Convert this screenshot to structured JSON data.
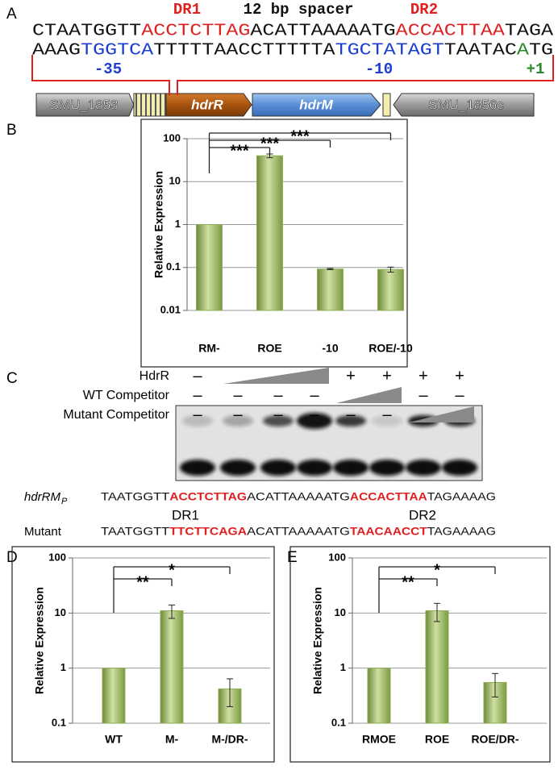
{
  "panels": [
    "A",
    "B",
    "C",
    "D",
    "E"
  ],
  "panel_a": {
    "labels": {
      "dr1": "DR1",
      "spacer": "12 bp spacer",
      "dr2": "DR2"
    },
    "line1": [
      {
        "text": "CTAATGGTT",
        "color": "#111111"
      },
      {
        "text": "ACCTCTTAG",
        "color": "#e02020"
      },
      {
        "text": "ACATTAAAAATG",
        "color": "#111111"
      },
      {
        "text": "ACCACTTAA",
        "color": "#e02020"
      },
      {
        "text": "TAGA",
        "color": "#111111"
      }
    ],
    "line2": [
      {
        "text": "AAAG",
        "color": "#111111"
      },
      {
        "text": "TGGTCA",
        "color": "#1a3fd0"
      },
      {
        "text": "TTTTTAACCTTTTTA",
        "color": "#111111"
      },
      {
        "text": "TGCTATAGT",
        "color": "#1a3fd0"
      },
      {
        "text": "TAATAC",
        "color": "#111111"
      },
      {
        "text": "A",
        "color": "#2a8a2a"
      },
      {
        "text": "TG",
        "color": "#111111"
      }
    ],
    "promoter": {
      "m35": "-35",
      "m10": "-10",
      "tss": "+1"
    },
    "genes": [
      "SMU_1853",
      "hdrR",
      "hdrM",
      "SMU_1856c"
    ]
  },
  "chart_data": [
    {
      "type": "bar",
      "ylabel": "Relative Expression",
      "categories": [
        "RM-",
        "ROE",
        "-10",
        "ROE/-10"
      ],
      "values": [
        1,
        40,
        0.092,
        0.09
      ],
      "errors": [
        null,
        4,
        0.003,
        0.012
      ],
      "color": "#8fae55",
      "log_scale": true,
      "ylim": [
        0.01,
        100
      ],
      "yticks": [
        0.01,
        0.1,
        1,
        10,
        100
      ],
      "grid": true,
      "annotations": [
        "***",
        "***",
        "***"
      ]
    },
    {
      "type": "bar",
      "ylabel": "Relative Expression",
      "categories": [
        "WT",
        "M-",
        "M-/DR-"
      ],
      "values": [
        1,
        11,
        0.42
      ],
      "errors": [
        null,
        3,
        0.22
      ],
      "color": "#8fae55",
      "log_scale": true,
      "ylim": [
        0.1,
        100
      ],
      "yticks": [
        0.1,
        1,
        10,
        100
      ],
      "grid": true,
      "annotations": [
        "**",
        "*"
      ]
    },
    {
      "type": "bar",
      "ylabel": "Relative Expression",
      "categories": [
        "RMOE",
        "ROE",
        "ROE/DR-"
      ],
      "values": [
        1,
        11,
        0.55
      ],
      "errors": [
        null,
        4,
        0.25
      ],
      "color": "#8fae55",
      "log_scale": true,
      "ylim": [
        0.1,
        100
      ],
      "yticks": [
        0.1,
        1,
        10,
        100
      ],
      "grid": true,
      "annotations": [
        "**",
        "*"
      ]
    }
  ],
  "panel_c": {
    "rows": [
      {
        "label": "HdrR",
        "marks": [
          "–",
          null,
          null,
          null,
          "+",
          "+",
          "+",
          "+"
        ]
      },
      {
        "label": "WT Competitor",
        "marks": [
          "–",
          "–",
          "–",
          "–",
          null,
          null,
          "–",
          "–"
        ]
      },
      {
        "label": "Mutant Competitor",
        "marks": [
          "–",
          "–",
          "–",
          "–",
          "–",
          "–",
          null,
          null
        ]
      }
    ],
    "sequences": [
      {
        "name": "hdrRM",
        "sub": "P",
        "segments": [
          {
            "text": "TAATGGTT",
            "color": "#111111"
          },
          {
            "text": "ACCTCTTAG",
            "color": "#e02020"
          },
          {
            "text": "ACATTAAAAATG",
            "color": "#111111"
          },
          {
            "text": "ACCACTTAA",
            "color": "#e02020"
          },
          {
            "text": "TAGAAAAG",
            "color": "#111111"
          }
        ]
      },
      {
        "name": "Mutant",
        "segments": [
          {
            "text": "TAATGGTT",
            "color": "#111111"
          },
          {
            "text": "TTCTTCAGA",
            "color": "#e02020"
          },
          {
            "text": "ACATTAAAAATG",
            "color": "#111111"
          },
          {
            "text": "TAACAACCT",
            "color": "#e02020"
          },
          {
            "text": "TAGAAAAG",
            "color": "#111111"
          }
        ]
      }
    ],
    "dr_labels": [
      "DR1",
      "DR2"
    ]
  }
}
